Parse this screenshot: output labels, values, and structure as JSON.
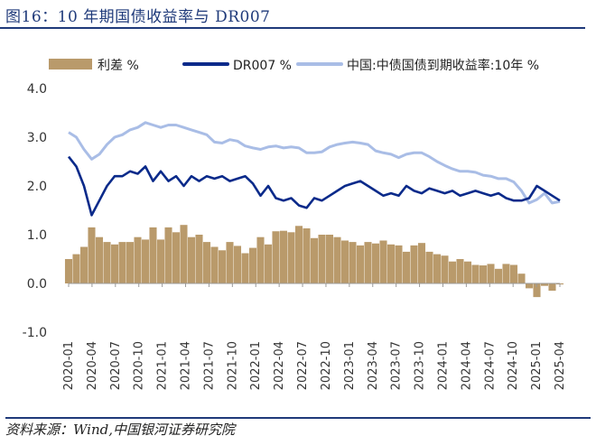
{
  "title": "图16：10 年期国债收益率与 DR007",
  "source": "资料来源：Wind,中国银河证券研究院",
  "chart_data": {
    "type": "line",
    "colors": {
      "spread": "#b99a6b",
      "dr007": "#0a2a8a",
      "cgb10y": "#a9bde6"
    },
    "series": [
      {
        "key": "spread",
        "name": "利差 %",
        "kind": "area"
      },
      {
        "key": "dr007",
        "name": "DR007 %",
        "kind": "line"
      },
      {
        "key": "cgb10y",
        "name": "中国:中债国债到期收益率:10年 %",
        "kind": "line"
      }
    ],
    "ylim": [
      -1.0,
      4.0
    ],
    "ytick_labels": [
      "4.0",
      "3.0",
      "2.0",
      "1.0",
      "0.0",
      "-1.0"
    ],
    "xtick_labels": [
      "2020-01",
      "2020-04",
      "2020-07",
      "2020-10",
      "2021-01",
      "2021-04",
      "2021-07",
      "2021-10",
      "2022-01",
      "2022-04",
      "2022-07",
      "2022-10",
      "2023-01",
      "2023-04",
      "2023-07",
      "2023-10",
      "2024-01",
      "2024-04",
      "2024-07",
      "2024-10",
      "2025-01",
      "2025-04"
    ],
    "x": [
      "2020-01",
      "2020-02",
      "2020-03",
      "2020-04",
      "2020-05",
      "2020-06",
      "2020-07",
      "2020-08",
      "2020-09",
      "2020-10",
      "2020-11",
      "2020-12",
      "2021-01",
      "2021-02",
      "2021-03",
      "2021-04",
      "2021-05",
      "2021-06",
      "2021-07",
      "2021-08",
      "2021-09",
      "2021-10",
      "2021-11",
      "2021-12",
      "2022-01",
      "2022-02",
      "2022-03",
      "2022-04",
      "2022-05",
      "2022-06",
      "2022-07",
      "2022-08",
      "2022-09",
      "2022-10",
      "2022-11",
      "2022-12",
      "2023-01",
      "2023-02",
      "2023-03",
      "2023-04",
      "2023-05",
      "2023-06",
      "2023-07",
      "2023-08",
      "2023-09",
      "2023-10",
      "2023-11",
      "2023-12",
      "2024-01",
      "2024-02",
      "2024-03",
      "2024-04",
      "2024-05",
      "2024-06",
      "2024-07",
      "2024-08",
      "2024-09",
      "2024-10",
      "2024-11",
      "2024-12",
      "2025-01",
      "2025-02",
      "2025-03",
      "2025-04",
      "2025-05"
    ],
    "cgb10y": [
      3.1,
      3.0,
      2.75,
      2.55,
      2.65,
      2.85,
      3.0,
      3.05,
      3.15,
      3.2,
      3.3,
      3.25,
      3.2,
      3.25,
      3.25,
      3.2,
      3.15,
      3.1,
      3.05,
      2.9,
      2.88,
      2.95,
      2.92,
      2.82,
      2.78,
      2.75,
      2.8,
      2.82,
      2.78,
      2.8,
      2.78,
      2.68,
      2.68,
      2.7,
      2.8,
      2.85,
      2.88,
      2.9,
      2.88,
      2.85,
      2.72,
      2.68,
      2.65,
      2.58,
      2.65,
      2.68,
      2.68,
      2.6,
      2.5,
      2.42,
      2.35,
      2.3,
      2.3,
      2.28,
      2.22,
      2.2,
      2.15,
      2.15,
      2.08,
      1.9,
      1.65,
      1.72,
      1.85,
      1.65,
      1.68
    ],
    "dr007": [
      2.6,
      2.4,
      2.0,
      1.4,
      1.7,
      2.0,
      2.2,
      2.2,
      2.3,
      2.25,
      2.4,
      2.1,
      2.3,
      2.1,
      2.2,
      2.0,
      2.2,
      2.1,
      2.2,
      2.15,
      2.2,
      2.1,
      2.15,
      2.2,
      2.05,
      1.8,
      2.0,
      1.75,
      1.7,
      1.75,
      1.6,
      1.55,
      1.75,
      1.7,
      1.8,
      1.9,
      2.0,
      2.05,
      2.1,
      2.0,
      1.9,
      1.8,
      1.85,
      1.8,
      2.0,
      1.9,
      1.85,
      1.95,
      1.9,
      1.85,
      1.9,
      1.8,
      1.85,
      1.9,
      1.85,
      1.8,
      1.85,
      1.75,
      1.7,
      1.7,
      1.75,
      2.0,
      1.9,
      1.8,
      1.7
    ],
    "spread": [
      0.5,
      0.6,
      0.75,
      1.15,
      0.95,
      0.85,
      0.8,
      0.85,
      0.85,
      0.95,
      0.9,
      1.15,
      0.9,
      1.15,
      1.05,
      1.2,
      0.95,
      1.0,
      0.85,
      0.75,
      0.68,
      0.85,
      0.77,
      0.62,
      0.73,
      0.95,
      0.8,
      1.07,
      1.08,
      1.05,
      1.18,
      1.13,
      0.93,
      1.0,
      1.0,
      0.95,
      0.88,
      0.85,
      0.78,
      0.85,
      0.82,
      0.88,
      0.8,
      0.78,
      0.65,
      0.78,
      0.83,
      0.65,
      0.6,
      0.57,
      0.45,
      0.5,
      0.45,
      0.38,
      0.37,
      0.4,
      0.3,
      0.4,
      0.38,
      0.2,
      -0.1,
      -0.28,
      -0.05,
      -0.15,
      -0.02
    ]
  }
}
